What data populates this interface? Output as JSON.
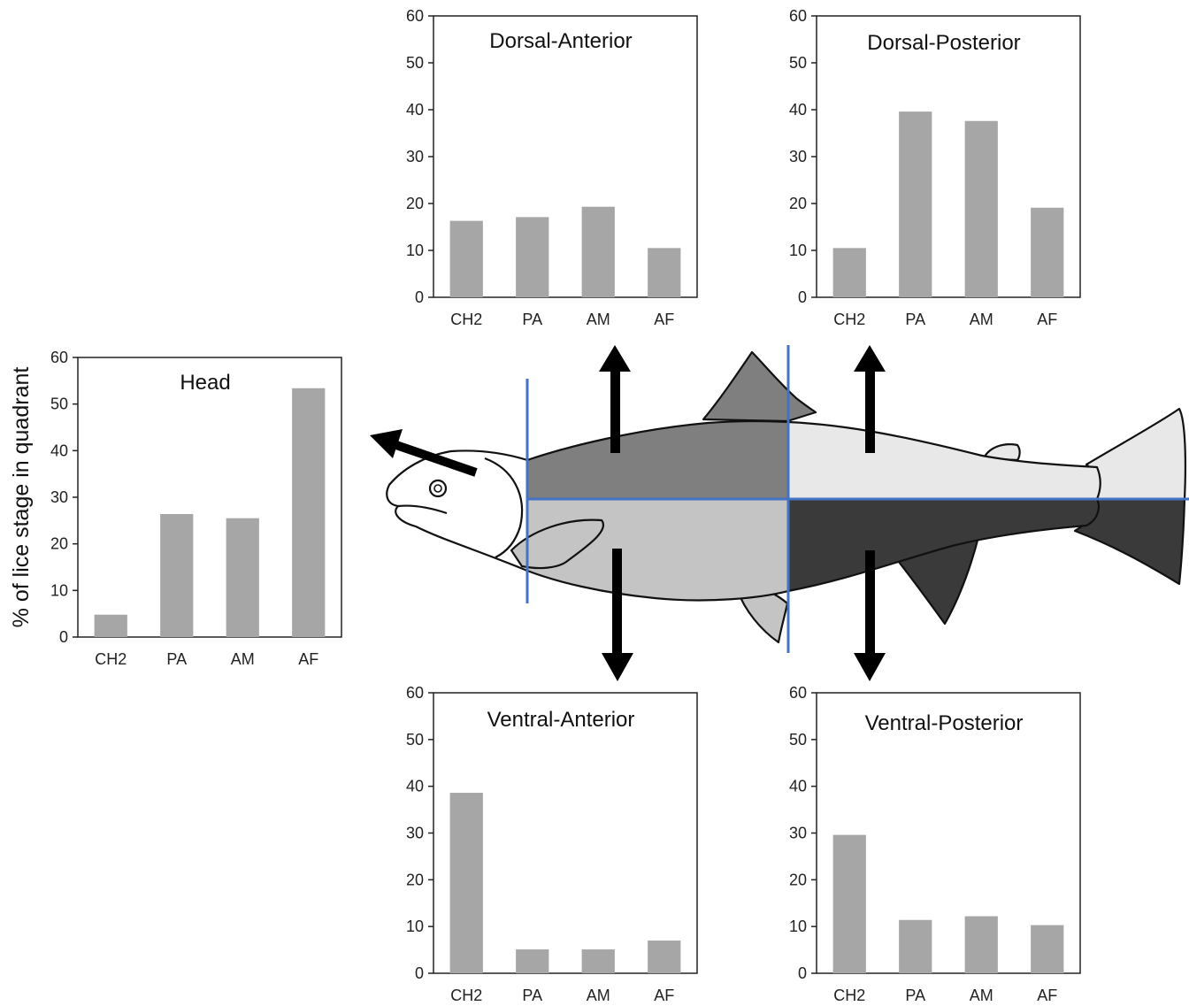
{
  "ylabel": "% of lice stage in quadrant",
  "colors": {
    "bar": "#a6a6a6",
    "axis": "#222222",
    "divider": "#4472c4",
    "fish_dorsal_anterior": "#7f7f7f",
    "fish_dorsal_posterior": "#e8e8e8",
    "fish_ventral_anterior": "#c4c4c4",
    "fish_ventral_posterior": "#3a3a3a",
    "arrow": "#000000"
  },
  "chart_data": [
    {
      "type": "bar",
      "title": "Head",
      "categories": [
        "CH2",
        "PA",
        "AM",
        "AF"
      ],
      "values": [
        4.8,
        26.4,
        25.5,
        53.4
      ],
      "ylim": [
        0,
        60
      ],
      "yticks": [
        0,
        10,
        20,
        30,
        40,
        50,
        60
      ]
    },
    {
      "type": "bar",
      "title": "Dorsal-Anterior",
      "categories": [
        "CH2",
        "PA",
        "AM",
        "AF"
      ],
      "values": [
        16.3,
        17.1,
        19.3,
        10.5
      ],
      "ylim": [
        0,
        60
      ],
      "yticks": [
        0,
        10,
        20,
        30,
        40,
        50,
        60
      ]
    },
    {
      "type": "bar",
      "title": "Dorsal-Posterior",
      "categories": [
        "CH2",
        "PA",
        "AM",
        "AF"
      ],
      "values": [
        10.5,
        39.6,
        37.6,
        19.1
      ],
      "ylim": [
        0,
        60
      ],
      "yticks": [
        0,
        10,
        20,
        30,
        40,
        50,
        60
      ]
    },
    {
      "type": "bar",
      "title": "Ventral-Anterior",
      "categories": [
        "CH2",
        "PA",
        "AM",
        "AF"
      ],
      "values": [
        38.6,
        5.1,
        5.1,
        7.0
      ],
      "ylim": [
        0,
        60
      ],
      "yticks": [
        0,
        10,
        20,
        30,
        40,
        50,
        60
      ]
    },
    {
      "type": "bar",
      "title": "Ventral-Posterior",
      "categories": [
        "CH2",
        "PA",
        "AM",
        "AF"
      ],
      "values": [
        29.6,
        11.4,
        12.2,
        10.3
      ],
      "ylim": [
        0,
        60
      ],
      "yticks": [
        0,
        10,
        20,
        30,
        40,
        50,
        60
      ]
    }
  ]
}
